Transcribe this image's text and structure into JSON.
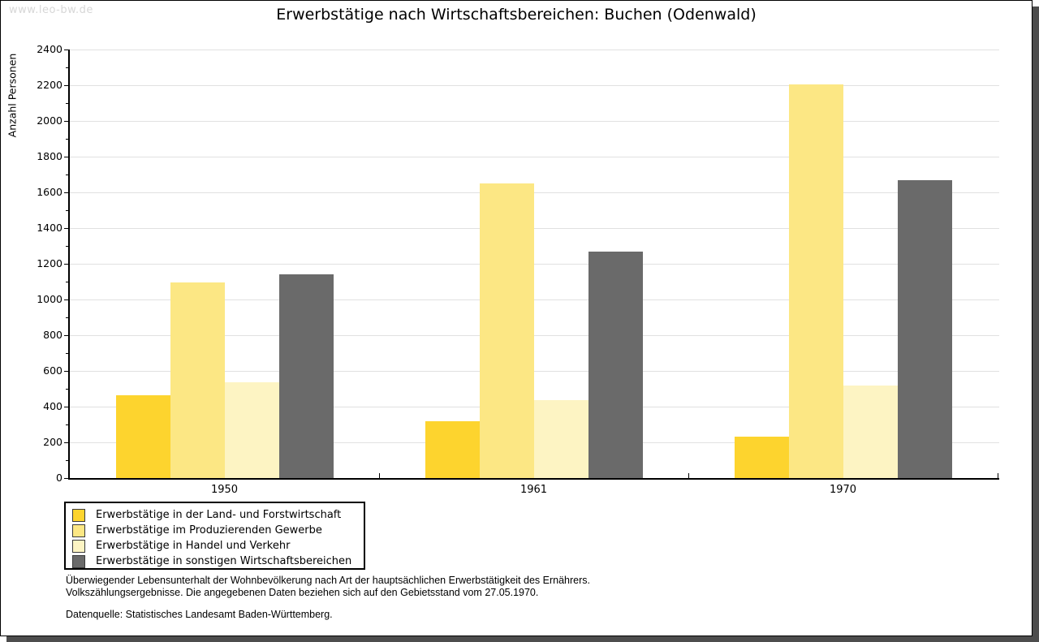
{
  "page": {
    "watermark": "www.leo-bw.de",
    "title": "Erwerbstätige nach Wirtschaftsbereichen: Buchen (Odenwald)",
    "footnote_line1": "Überwiegender Lebensunterhalt der Wohnbevölkerung nach Art der hauptsächlichen Erwerbstätigkeit des Ernährers.",
    "footnote_line2": "Volkszählungsergebnisse. Die angegebenen Daten beziehen sich auf den Gebietsstand vom 27.05.1970.",
    "source": "Datenquelle: Statistisches Landesamt Baden-Württemberg."
  },
  "chart_data": {
    "type": "bar",
    "title": "Erwerbstätige nach Wirtschaftsbereichen: Buchen (Odenwald)",
    "xlabel": "",
    "ylabel": "Anzahl Personen",
    "categories": [
      "1950",
      "1961",
      "1970"
    ],
    "series": [
      {
        "name": "Erwerbstätige in der Land- und Forstwirtschaft",
        "color": "#fdd42e",
        "values": [
          465,
          320,
          230
        ]
      },
      {
        "name": "Erwerbstätige im Produzierenden Gewerbe",
        "color": "#fce784",
        "values": [
          1095,
          1650,
          2205
        ]
      },
      {
        "name": "Erwerbstätige in Handel und Verkehr",
        "color": "#fdf4c3",
        "values": [
          535,
          435,
          520
        ]
      },
      {
        "name": "Erwerbstätige in sonstigen Wirtschaftsbereichen",
        "color": "#6a6a6a",
        "values": [
          1140,
          1270,
          1670
        ]
      }
    ],
    "ylim": [
      0,
      2400
    ],
    "ytick_step": 200,
    "ytick_minor_step": 100,
    "grid": true,
    "legend_position": "bottom-left",
    "colors": {
      "gridline": "#e1e1e1",
      "axis": "#000000",
      "watermark_text": "#d7d7d7",
      "panel_shadow": "#4d4d4d"
    }
  }
}
